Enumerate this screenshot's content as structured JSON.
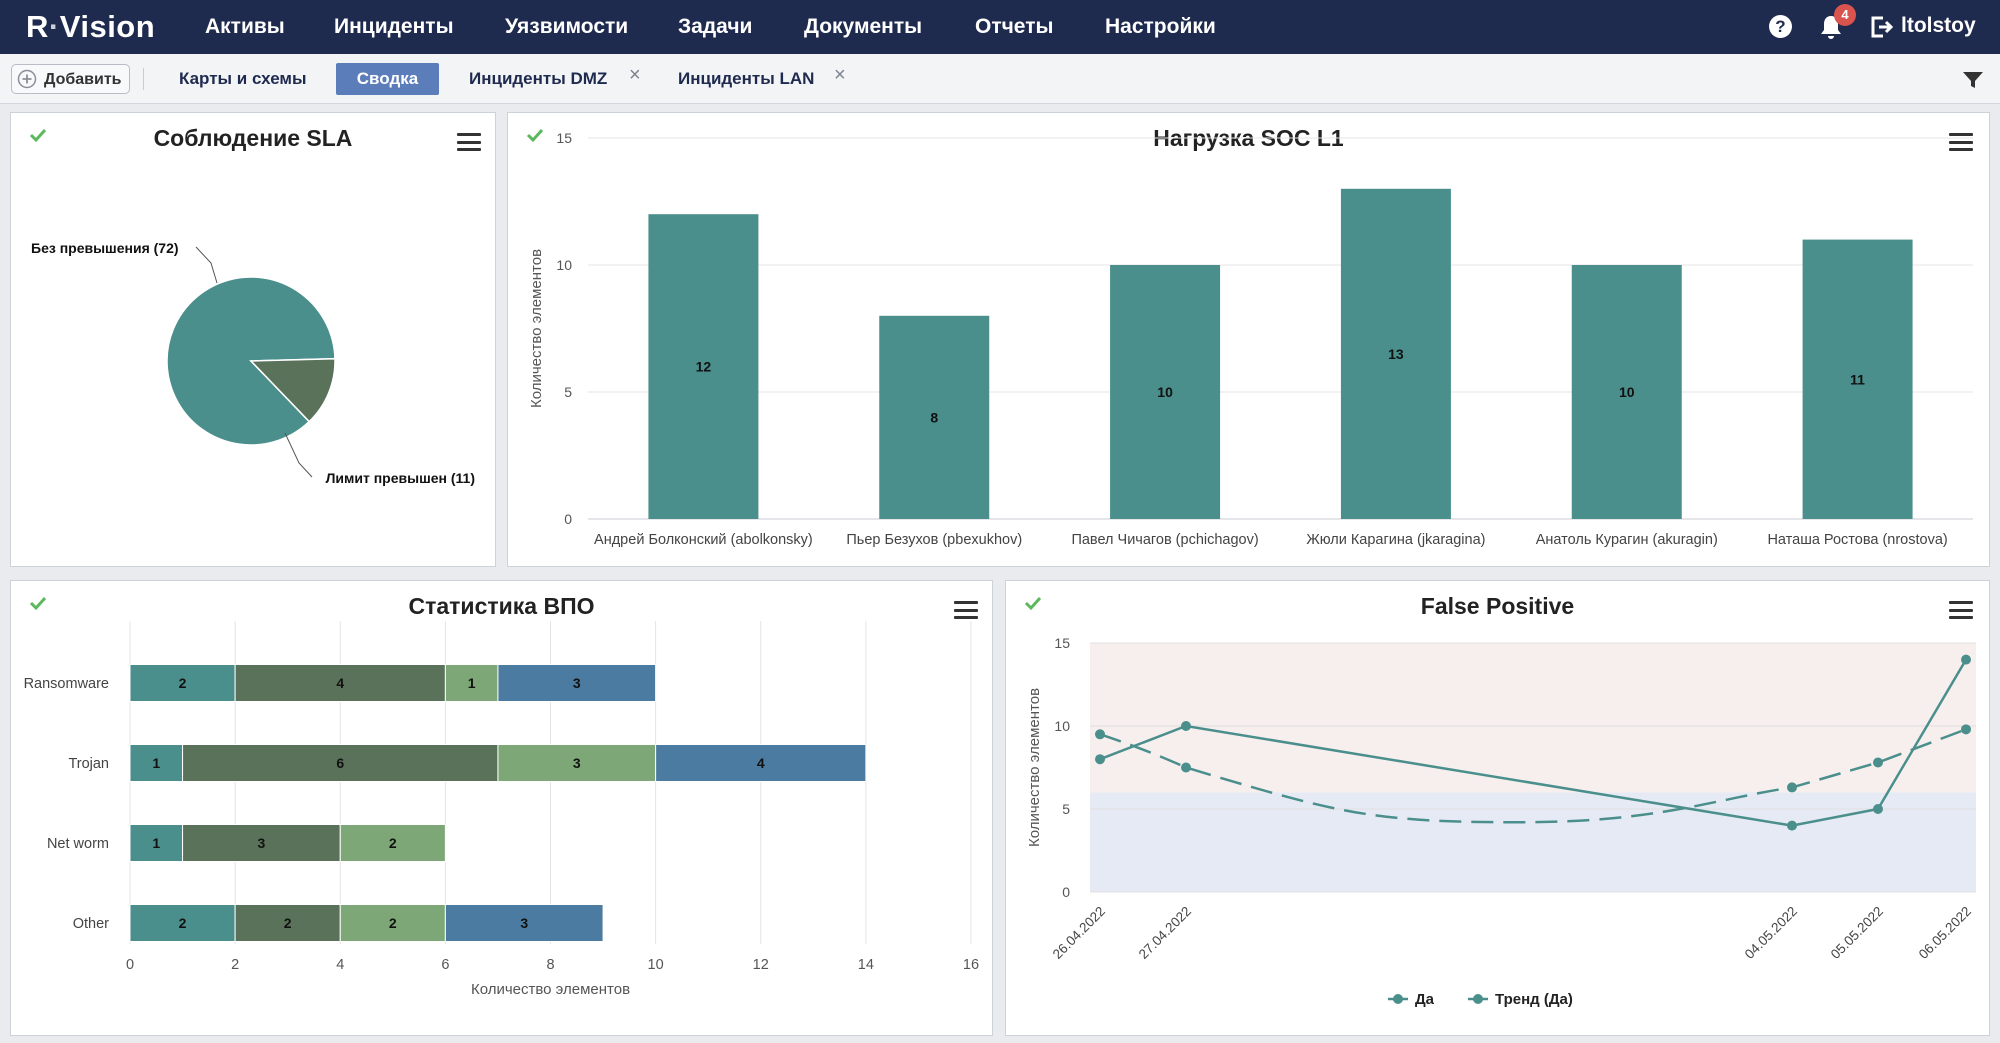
{
  "app": {
    "logo_left": "R",
    "logo_dot": "·",
    "logo_right": "Vision",
    "nav": [
      "Активы",
      "Инциденты",
      "Уязвимости",
      "Задачи",
      "Документы",
      "Отчеты",
      "Настройки"
    ],
    "help_label": "?",
    "notification_count": "4",
    "username": "ltolstoy"
  },
  "toolbar": {
    "add_label": "Добавить",
    "tabs": [
      "Карты и схемы",
      "Сводка",
      "Инциденты DMZ",
      "Инциденты LAN"
    ],
    "active_tab": "Сводка",
    "close_symbol": "×"
  },
  "colors": {
    "navbar": "#1f2a4f",
    "teal": "#4a8f8c",
    "dark_green": "#5a7259",
    "light_green": "#7ea777",
    "steel_blue": "#4b7ba0",
    "check_green": "#5cb85c"
  },
  "chart_data": [
    {
      "id": "sla",
      "type": "pie",
      "title": "Соблюдение SLA",
      "slices": [
        {
          "label": "Без превышения (72)",
          "value": 72,
          "color": "#4a8f8c"
        },
        {
          "label": "Лимит превышен (11)",
          "value": 11,
          "color": "#5a7259"
        }
      ]
    },
    {
      "id": "soc",
      "type": "bar",
      "title": "Нагрузка SOC L1",
      "ylabel": "Количество элементов",
      "ylim": [
        0,
        15
      ],
      "yticks": [
        0,
        5,
        10,
        15
      ],
      "categories": [
        "Андрей Болконский (abolkonsky)",
        "Пьер Безухов (pbexukhov)",
        "Павел Чичагов (pchichagov)",
        "Жюли Карагина (jkaragina)",
        "Анатоль Курагин (akuragin)",
        "Наташа Ростова (nrostova)"
      ],
      "values": [
        12,
        8,
        10,
        13,
        10,
        11
      ],
      "color": "#4a8f8c"
    },
    {
      "id": "vpo",
      "type": "bar",
      "orientation": "horizontal",
      "stacked": true,
      "title": "Статистика ВПО",
      "xlabel": "Количество элементов",
      "xlim": [
        0,
        16
      ],
      "xticks": [
        0,
        2,
        4,
        6,
        8,
        10,
        12,
        14,
        16
      ],
      "categories": [
        "Ransomware",
        "Trojan",
        "Net worm",
        "Other"
      ],
      "series": [
        {
          "values": [
            2,
            1,
            1,
            2
          ],
          "color": "#4a8f8c"
        },
        {
          "values": [
            4,
            6,
            3,
            2
          ],
          "color": "#5a7259"
        },
        {
          "values": [
            1,
            3,
            2,
            2
          ],
          "color": "#7ea777"
        },
        {
          "values": [
            3,
            4,
            0,
            3
          ],
          "color": "#4b7ba0"
        }
      ]
    },
    {
      "id": "fp",
      "type": "line",
      "title": "False Positive",
      "ylabel": "Количество элементов",
      "ylim": [
        0,
        15
      ],
      "yticks": [
        0,
        5,
        10,
        15
      ],
      "x": [
        "26.04.2022",
        "27.04.2022",
        "04.05.2022",
        "05.05.2022",
        "06.05.2022"
      ],
      "bands": [
        {
          "from": 0,
          "to": 6,
          "color": "#e6eaf4"
        },
        {
          "from": 6,
          "to": 15,
          "color": "#f7eeee"
        }
      ],
      "series": [
        {
          "name": "Да",
          "values": [
            8,
            10,
            4,
            5,
            14
          ],
          "style": "solid",
          "color": "#4a8f8c"
        },
        {
          "name": "Тренд (Да)",
          "values": [
            9.5,
            7.5,
            6.3,
            7.8,
            9.8
          ],
          "trend_min": 4.2,
          "style": "dashed",
          "color": "#4a8f8c"
        }
      ],
      "legend": "bottom-center"
    }
  ]
}
